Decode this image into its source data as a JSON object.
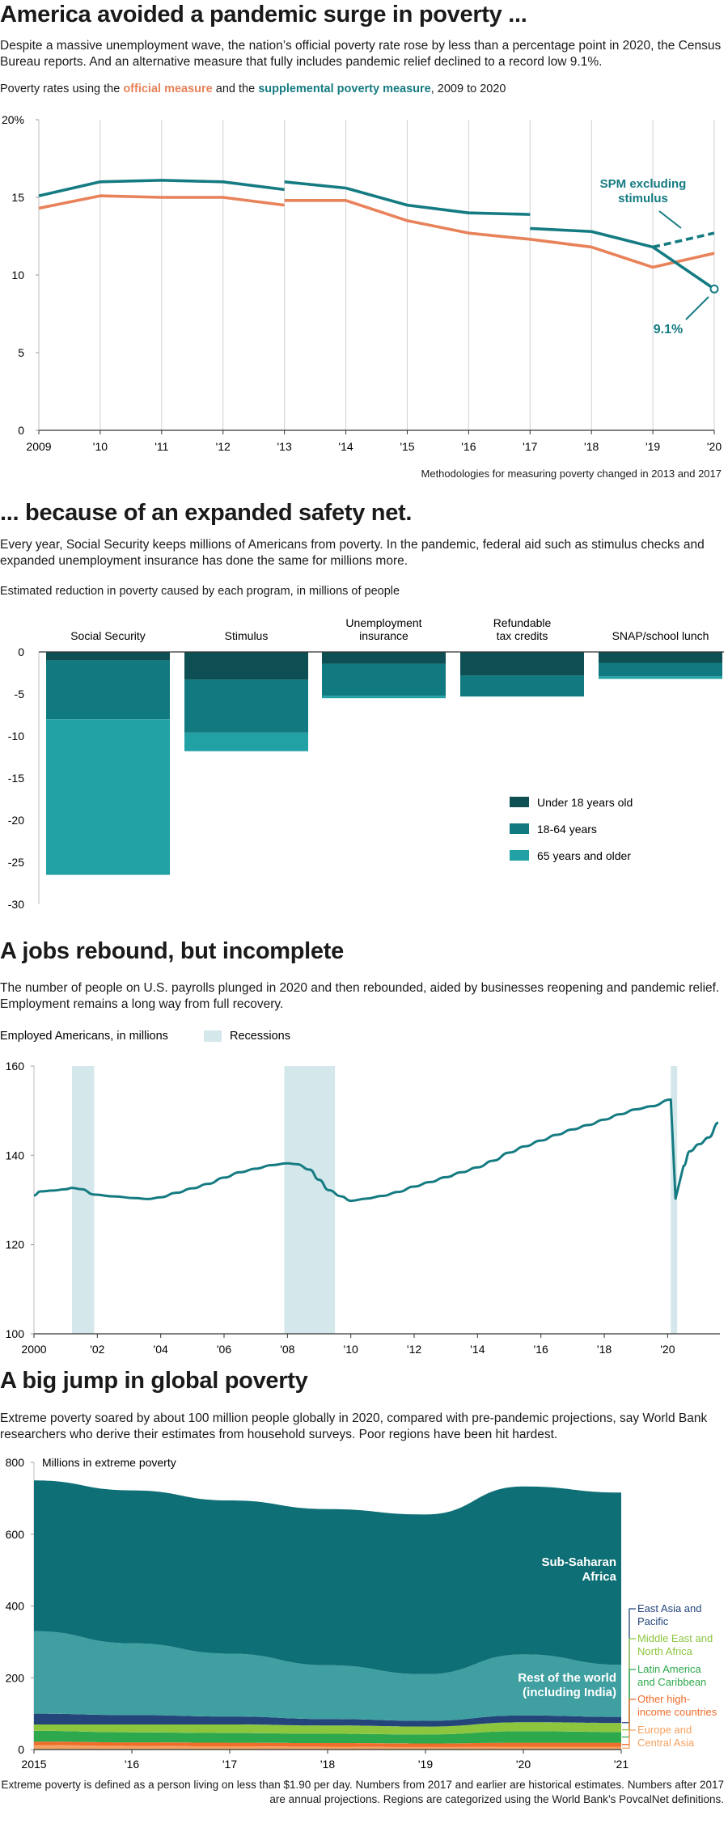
{
  "colors": {
    "official": "#e8825a",
    "spm": "#157b82",
    "under18": "#0e4f54",
    "adults": "#117a80",
    "seniors": "#22a1a4",
    "employment": "#157b82",
    "recession": "#d4e7ea",
    "ssa": "#0f6f76",
    "rest": "#3f9fa1",
    "eap": "#24457a",
    "mena": "#8cc63f",
    "lac": "#2ea84d",
    "other_high": "#ef6c2a",
    "eca": "#f4a261"
  },
  "section1": {
    "headline": "America avoided a pandemic surge in poverty ...",
    "dek": "Despite a massive unemployment wave, the nation’s official poverty rate rose by less than a percentage point in 2020, the Census Bureau reports. And an alternative measure that fully includes pandemic relief declined to a record low 9.1%.",
    "sub_prefix": "Poverty rates using the ",
    "sub_official": "official measure",
    "sub_mid": " and the ",
    "sub_spm": "supplemental poverty measure",
    "sub_suffix": ", 2009 to 2020",
    "note": "Methodologies for measuring poverty changed in 2013 and 2017"
  },
  "section2": {
    "headline": "... because of an expanded safety net.",
    "dek": "Every year, Social Security keeps millions of Americans from poverty. In the pandemic, federal aid such as stimulus checks and expanded unemployment insurance has done the same for millions more.",
    "sub": "Estimated reduction in poverty caused by each program, in millions of people"
  },
  "section3": {
    "headline": "A jobs rebound, but incomplete",
    "dek": "The number of people on U.S. payrolls plunged in 2020 and then rebounded, aided by businesses reopening and pandemic relief. Employment remains a long way from full recovery.",
    "sub": "Employed Americans, in millions",
    "recession_label": "Recessions"
  },
  "section4": {
    "headline": "A big jump in global poverty",
    "dek": "Extreme poverty soared by about 100 million people globally in 2020, compared with pre-pandemic projections, say World Bank researchers who derive their estimates from household surveys. Poor regions have been hit hardest.",
    "footnote": "Extreme poverty is defined as a person living on less than $1.90 per day. Numbers from 2017 and earlier are historical estimates. Numbers after 2017 are annual projections. Regions are categorized using the World Bank’s PovcalNet definitions."
  },
  "chart_data": [
    {
      "type": "line",
      "title": "Poverty rates using the official measure and the supplemental poverty measure, 2009 to 2020",
      "x_labels": [
        "2009",
        "'10",
        "'11",
        "'12",
        "'13",
        "'14",
        "'15",
        "'16",
        "'17",
        "'18",
        "'19",
        "'20"
      ],
      "y_ticks": [
        "0",
        "5",
        "10",
        "15",
        "20%"
      ],
      "ylim": [
        0,
        20
      ],
      "series": [
        {
          "name": "Official measure",
          "segments": [
            {
              "x": [
                2009,
                2010,
                2011,
                2012,
                2013
              ],
              "y": [
                14.3,
                15.1,
                15.0,
                15.0,
                14.5
              ]
            },
            {
              "x": [
                2013,
                2014,
                2015,
                2016,
                2017,
                2018,
                2019,
                2020
              ],
              "y": [
                14.8,
                14.8,
                13.5,
                12.7,
                12.3,
                11.8,
                10.5,
                11.4
              ]
            }
          ]
        },
        {
          "name": "Supplemental poverty measure",
          "segments": [
            {
              "x": [
                2009,
                2010,
                2011,
                2012,
                2013
              ],
              "y": [
                15.1,
                16.0,
                16.1,
                16.0,
                15.5
              ]
            },
            {
              "x": [
                2013,
                2014
              ],
              "y": [
                16.0,
                15.6
              ]
            },
            {
              "x": [
                2014,
                2015,
                2016,
                2017
              ],
              "y": [
                15.6,
                14.5,
                14.0,
                13.9
              ]
            },
            {
              "x": [
                2017,
                2018,
                2019,
                2020
              ],
              "y": [
                13.0,
                12.8,
                11.8,
                9.1
              ]
            }
          ]
        },
        {
          "name": "SPM excluding stimulus",
          "dashed": true,
          "segments": [
            {
              "x": [
                2019,
                2020
              ],
              "y": [
                11.8,
                12.7
              ]
            }
          ]
        }
      ],
      "annotations": [
        "SPM excluding",
        "stimulus",
        "9.1%"
      ]
    },
    {
      "type": "bar",
      "stacked": true,
      "title": "Estimated reduction in poverty caused by each program, in millions of people",
      "categories": [
        {
          "line1": "Social Security",
          "line2": ""
        },
        {
          "line1": "Stimulus",
          "line2": ""
        },
        {
          "line1": "Unemployment",
          "line2": "insurance"
        },
        {
          "line1": "Refundable",
          "line2": "tax credits"
        },
        {
          "line1": "SNAP/school lunch",
          "line2": ""
        }
      ],
      "series": [
        {
          "name": "Under 18 years old",
          "values": [
            -1.0,
            -3.3,
            -1.4,
            -2.8,
            -1.3
          ]
        },
        {
          "name": "18-64 years",
          "values": [
            -7.0,
            -6.3,
            -3.8,
            -2.5,
            -1.6
          ]
        },
        {
          "name": "65 years and older",
          "values": [
            -18.5,
            -2.2,
            -0.3,
            0,
            -0.3
          ]
        }
      ],
      "y_ticks": [
        "0",
        "-5",
        "-10",
        "-15",
        "-20",
        "-25",
        "-30"
      ],
      "ylim": [
        -30,
        0
      ]
    },
    {
      "type": "line",
      "title": "Employed Americans, in millions",
      "x_labels": [
        "2000",
        "'02",
        "'04",
        "'06",
        "'08",
        "'10",
        "'12",
        "'14",
        "'16",
        "'18",
        "'20"
      ],
      "y_ticks": [
        "100",
        "120",
        "140",
        "160"
      ],
      "ylim": [
        100,
        160
      ],
      "series": [
        {
          "name": "Employed Americans",
          "points": [
            [
              2000.0,
              131.0
            ],
            [
              2000.2,
              131.9
            ],
            [
              2000.6,
              132.1
            ],
            [
              2001.0,
              132.4
            ],
            [
              2001.2,
              132.7
            ],
            [
              2001.5,
              132.4
            ],
            [
              2001.9,
              131.2
            ],
            [
              2002.5,
              130.8
            ],
            [
              2003.2,
              130.4
            ],
            [
              2003.6,
              130.2
            ],
            [
              2004.0,
              130.6
            ],
            [
              2004.5,
              131.6
            ],
            [
              2005.0,
              132.6
            ],
            [
              2005.5,
              133.6
            ],
            [
              2006.0,
              135.0
            ],
            [
              2006.5,
              136.2
            ],
            [
              2007.0,
              137.0
            ],
            [
              2007.5,
              137.8
            ],
            [
              2008.0,
              138.2
            ],
            [
              2008.3,
              138.0
            ],
            [
              2008.7,
              136.8
            ],
            [
              2009.0,
              134.5
            ],
            [
              2009.3,
              132.2
            ],
            [
              2009.7,
              130.8
            ],
            [
              2010.0,
              129.8
            ],
            [
              2010.5,
              130.3
            ],
            [
              2011.0,
              130.9
            ],
            [
              2011.5,
              131.8
            ],
            [
              2012.0,
              133.0
            ],
            [
              2012.5,
              134.0
            ],
            [
              2013.0,
              135.1
            ],
            [
              2013.5,
              136.2
            ],
            [
              2014.0,
              137.3
            ],
            [
              2014.5,
              138.8
            ],
            [
              2015.0,
              140.6
            ],
            [
              2015.5,
              142.0
            ],
            [
              2016.0,
              143.3
            ],
            [
              2016.5,
              144.6
            ],
            [
              2017.0,
              145.8
            ],
            [
              2017.5,
              146.8
            ],
            [
              2018.0,
              148.0
            ],
            [
              2018.5,
              149.2
            ],
            [
              2019.0,
              150.3
            ],
            [
              2019.5,
              151.0
            ],
            [
              2020.1,
              152.5
            ],
            [
              2020.25,
              130.3
            ],
            [
              2020.5,
              137.6
            ],
            [
              2020.7,
              140.9
            ],
            [
              2021.0,
              142.5
            ],
            [
              2021.3,
              144.0
            ],
            [
              2021.6,
              147.3
            ]
          ]
        }
      ],
      "recessions": [
        [
          2001.2,
          2001.9
        ],
        [
          2007.9,
          2009.5
        ],
        [
          2020.1,
          2020.3
        ]
      ],
      "legend": [
        "Recessions"
      ]
    },
    {
      "type": "area",
      "stacked": true,
      "title": "Millions in extreme poverty",
      "x_labels": [
        "2015",
        "'16",
        "'17",
        "'18",
        "'19",
        "'20",
        "'21"
      ],
      "y_ticks": [
        "0",
        "200",
        "400",
        "600",
        "800"
      ],
      "ylim": [
        0,
        800
      ],
      "x": [
        2015,
        2016,
        2017,
        2018,
        2019,
        2020,
        2021
      ],
      "series": [
        {
          "name": "Europe and Central Asia",
          "values": [
            12,
            10,
            9,
            8,
            7,
            8,
            8
          ]
        },
        {
          "name": "Other high-income countries",
          "values": [
            10,
            10,
            10,
            10,
            10,
            11,
            11
          ]
        },
        {
          "name": "Latin America and Caribbean",
          "values": [
            30,
            28,
            27,
            26,
            25,
            32,
            30
          ]
        },
        {
          "name": "Middle East and North Africa",
          "values": [
            18,
            22,
            24,
            23,
            22,
            25,
            25
          ]
        },
        {
          "name": "East Asia and Pacific",
          "values": [
            30,
            26,
            22,
            18,
            16,
            19,
            17
          ]
        },
        {
          "name": "Rest of the world (including India)",
          "values": [
            230,
            200,
            175,
            150,
            130,
            170,
            145
          ]
        },
        {
          "name": "Sub-Saharan Africa",
          "values": [
            420,
            426,
            427,
            435,
            445,
            468,
            480
          ]
        }
      ],
      "labels": {
        "ssa": [
          "Sub-Saharan",
          "Africa"
        ],
        "rest": [
          "Rest of the world",
          "(including India)"
        ],
        "eap": [
          "East Asia and",
          "Pacific"
        ],
        "mena": [
          "Middle East and",
          "North Africa"
        ],
        "lac": [
          "Latin America",
          "and Caribbean"
        ],
        "other_high": [
          "Other high-",
          "income countries"
        ],
        "eca": [
          "Europe and",
          "Central Asia"
        ]
      }
    }
  ]
}
